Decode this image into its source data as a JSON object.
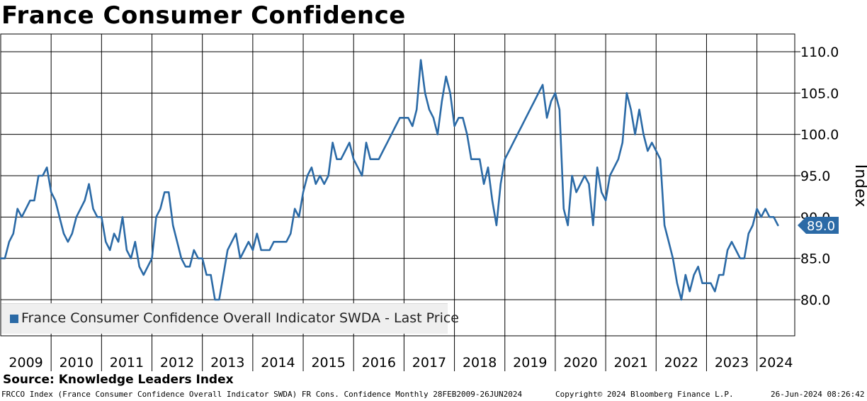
{
  "header": {
    "title": "France Consumer Confidence"
  },
  "source": "Source: Knowledge Leaders Index",
  "footer": {
    "description": "FRCCO Index (France Consumer Confidence Overall Indicator SWDA) FR Cons. Confidence  Monthly 28FEB2009-26JUN2024",
    "copyright": "Copyright© 2024 Bloomberg Finance L.P.",
    "timestamp": "26-Jun-2024 08:26:42"
  },
  "colors": {
    "series": "#2b6aa6",
    "grid": "#000000",
    "legend_bg": "#efefef"
  },
  "chart_data": {
    "type": "line",
    "title": "France Consumer Confidence",
    "ylabel": "Index",
    "ylim": [
      75.5,
      112.5
    ],
    "yticks": [
      80,
      85,
      90,
      95,
      100,
      105,
      110
    ],
    "ytick_labels": [
      "80.0",
      "85.0",
      "90.0",
      "95.0",
      "100.0",
      "105.0",
      "110.0"
    ],
    "xlim": [
      2009.0,
      2024.75
    ],
    "year_labels": [
      "2009",
      "2010",
      "2011",
      "2012",
      "2013",
      "2014",
      "2015",
      "2016",
      "2017",
      "2018",
      "2019",
      "2020",
      "2021",
      "2022",
      "2023",
      "2024"
    ],
    "grid": true,
    "legend": "France Consumer Confidence Overall Indicator SWDA - Last Price",
    "legend_position": "bottom-left",
    "last_value": 89.0,
    "last_value_label": "89.0",
    "series": [
      {
        "name": "France Consumer Confidence Overall Indicator SWDA - Last Price",
        "start": "2009-01",
        "frequency": "monthly",
        "values": [
          85,
          85,
          87,
          88,
          91,
          90,
          91,
          92,
          92,
          95,
          95,
          96,
          93,
          92,
          90,
          88,
          87,
          88,
          90,
          91,
          92,
          94,
          91,
          90,
          90,
          87,
          86,
          88,
          87,
          90,
          86,
          85,
          87,
          84,
          83,
          84,
          85,
          90,
          91,
          93,
          93,
          89,
          87,
          85,
          84,
          84,
          86,
          85,
          85,
          83,
          83,
          80,
          80,
          83,
          86,
          87,
          88,
          85,
          86,
          87,
          86,
          88,
          86,
          86,
          86,
          87,
          87,
          87,
          87,
          88,
          91,
          90,
          93,
          95,
          96,
          94,
          95,
          94,
          95,
          99,
          97,
          97,
          98,
          99,
          97,
          96,
          95,
          99,
          97,
          97,
          97,
          98,
          99,
          100,
          101,
          102,
          102,
          102,
          101,
          103,
          109,
          105,
          103,
          102,
          100,
          104,
          107,
          105,
          101,
          102,
          102,
          100,
          97,
          97,
          97,
          94,
          96,
          92,
          89,
          94,
          97,
          98,
          99,
          100,
          101,
          102,
          103,
          104,
          105,
          106,
          102,
          104,
          105,
          103,
          91,
          89,
          95,
          93,
          94,
          95,
          94,
          89,
          96,
          93,
          92,
          95,
          96,
          97,
          99,
          105,
          103,
          100,
          103,
          100,
          98,
          99,
          98,
          97,
          89,
          87,
          85,
          82,
          80,
          83,
          81,
          83,
          84,
          82,
          82,
          82,
          81,
          83,
          83,
          86,
          87,
          86,
          85,
          85,
          88,
          89,
          91,
          90,
          91,
          90,
          90,
          89
        ]
      }
    ]
  }
}
